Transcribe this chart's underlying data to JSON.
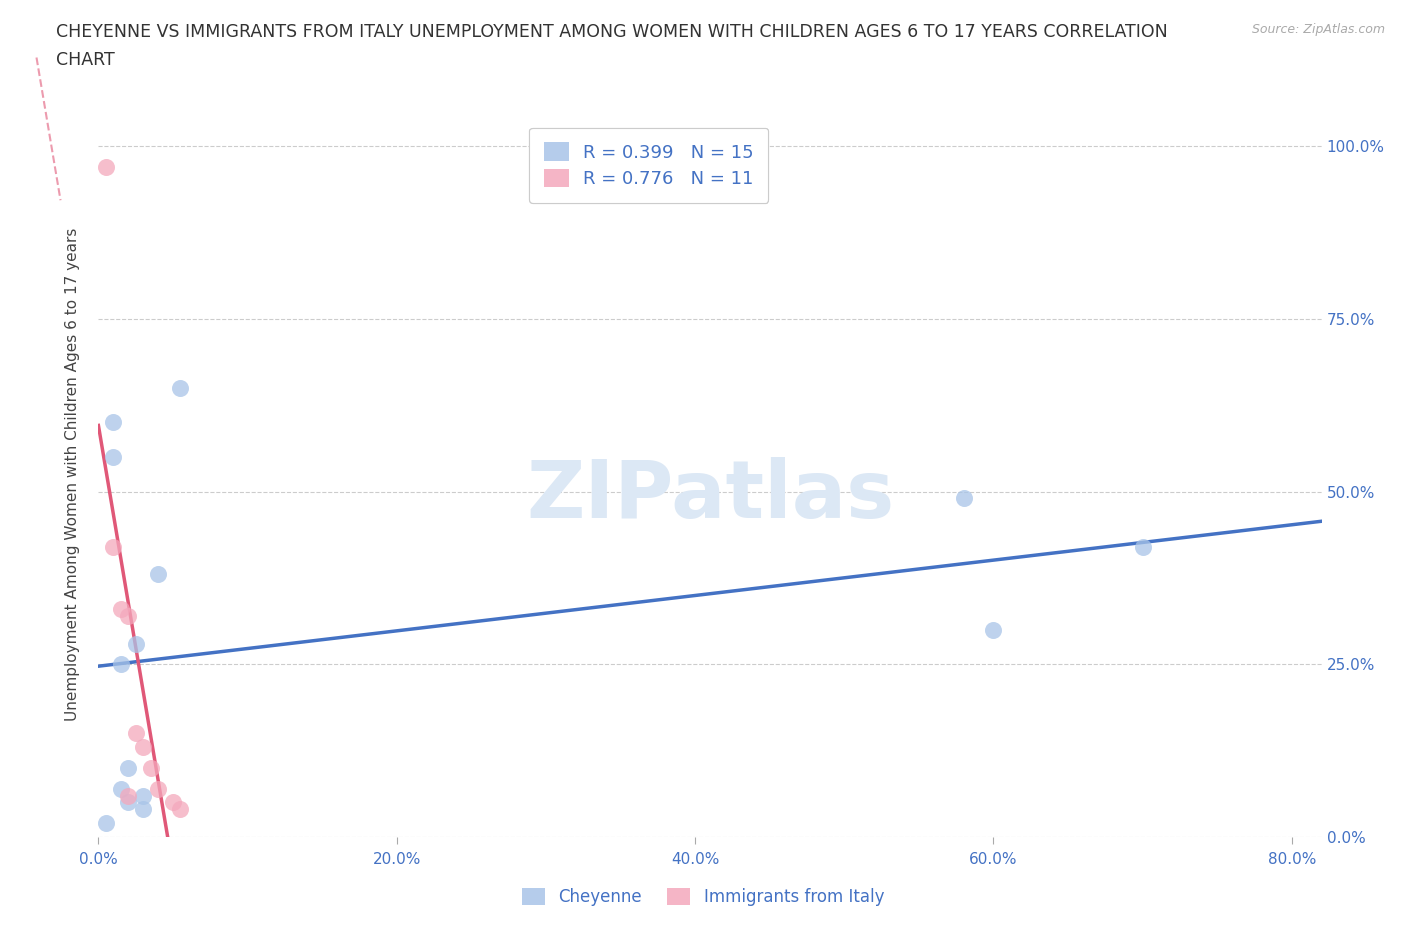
{
  "title_line1": "CHEYENNE VS IMMIGRANTS FROM ITALY UNEMPLOYMENT AMONG WOMEN WITH CHILDREN AGES 6 TO 17 YEARS CORRELATION",
  "title_line2": "CHART",
  "source": "Source: ZipAtlas.com",
  "ylabel_label": "Unemployment Among Women with Children Ages 6 to 17 years",
  "cheyenne_R": "0.399",
  "cheyenne_N": "15",
  "italy_R": "0.776",
  "italy_N": "11",
  "cheyenne_color": "#a8c4e8",
  "italy_color": "#f4a8bc",
  "cheyenne_line_color": "#4472c4",
  "italy_line_color": "#e05878",
  "cheyenne_x": [
    0.005,
    0.01,
    0.01,
    0.015,
    0.015,
    0.02,
    0.02,
    0.025,
    0.03,
    0.03,
    0.04,
    0.055,
    0.58,
    0.6,
    0.7
  ],
  "cheyenne_y": [
    0.02,
    0.55,
    0.6,
    0.25,
    0.07,
    0.1,
    0.05,
    0.28,
    0.06,
    0.04,
    0.38,
    0.65,
    0.49,
    0.3,
    0.42
  ],
  "italy_x": [
    0.005,
    0.01,
    0.015,
    0.02,
    0.02,
    0.025,
    0.03,
    0.035,
    0.04,
    0.05,
    0.055
  ],
  "italy_y": [
    0.97,
    0.42,
    0.33,
    0.32,
    0.06,
    0.15,
    0.13,
    0.1,
    0.07,
    0.05,
    0.04
  ],
  "xlim": [
    0.0,
    0.82
  ],
  "ylim": [
    0.0,
    1.05
  ],
  "x_tick_vals": [
    0.0,
    0.2,
    0.4,
    0.6,
    0.8
  ],
  "x_tick_labels": [
    "0.0%",
    "20.0%",
    "40.0%",
    "60.0%",
    "80.0%"
  ],
  "y_tick_vals": [
    0.0,
    0.25,
    0.5,
    0.75,
    1.0
  ],
  "y_tick_labels": [
    "0.0%",
    "25.0%",
    "50.0%",
    "75.0%",
    "100.0%"
  ],
  "background_color": "#ffffff",
  "grid_color": "#cccccc",
  "title_color": "#333333",
  "tick_color": "#4472c4",
  "legend_label_cheyenne": "Cheyenne",
  "legend_label_italy": "Immigrants from Italy",
  "watermark_text": "ZIPatlas",
  "watermark_color": "#dce8f5",
  "marker_size": 150
}
